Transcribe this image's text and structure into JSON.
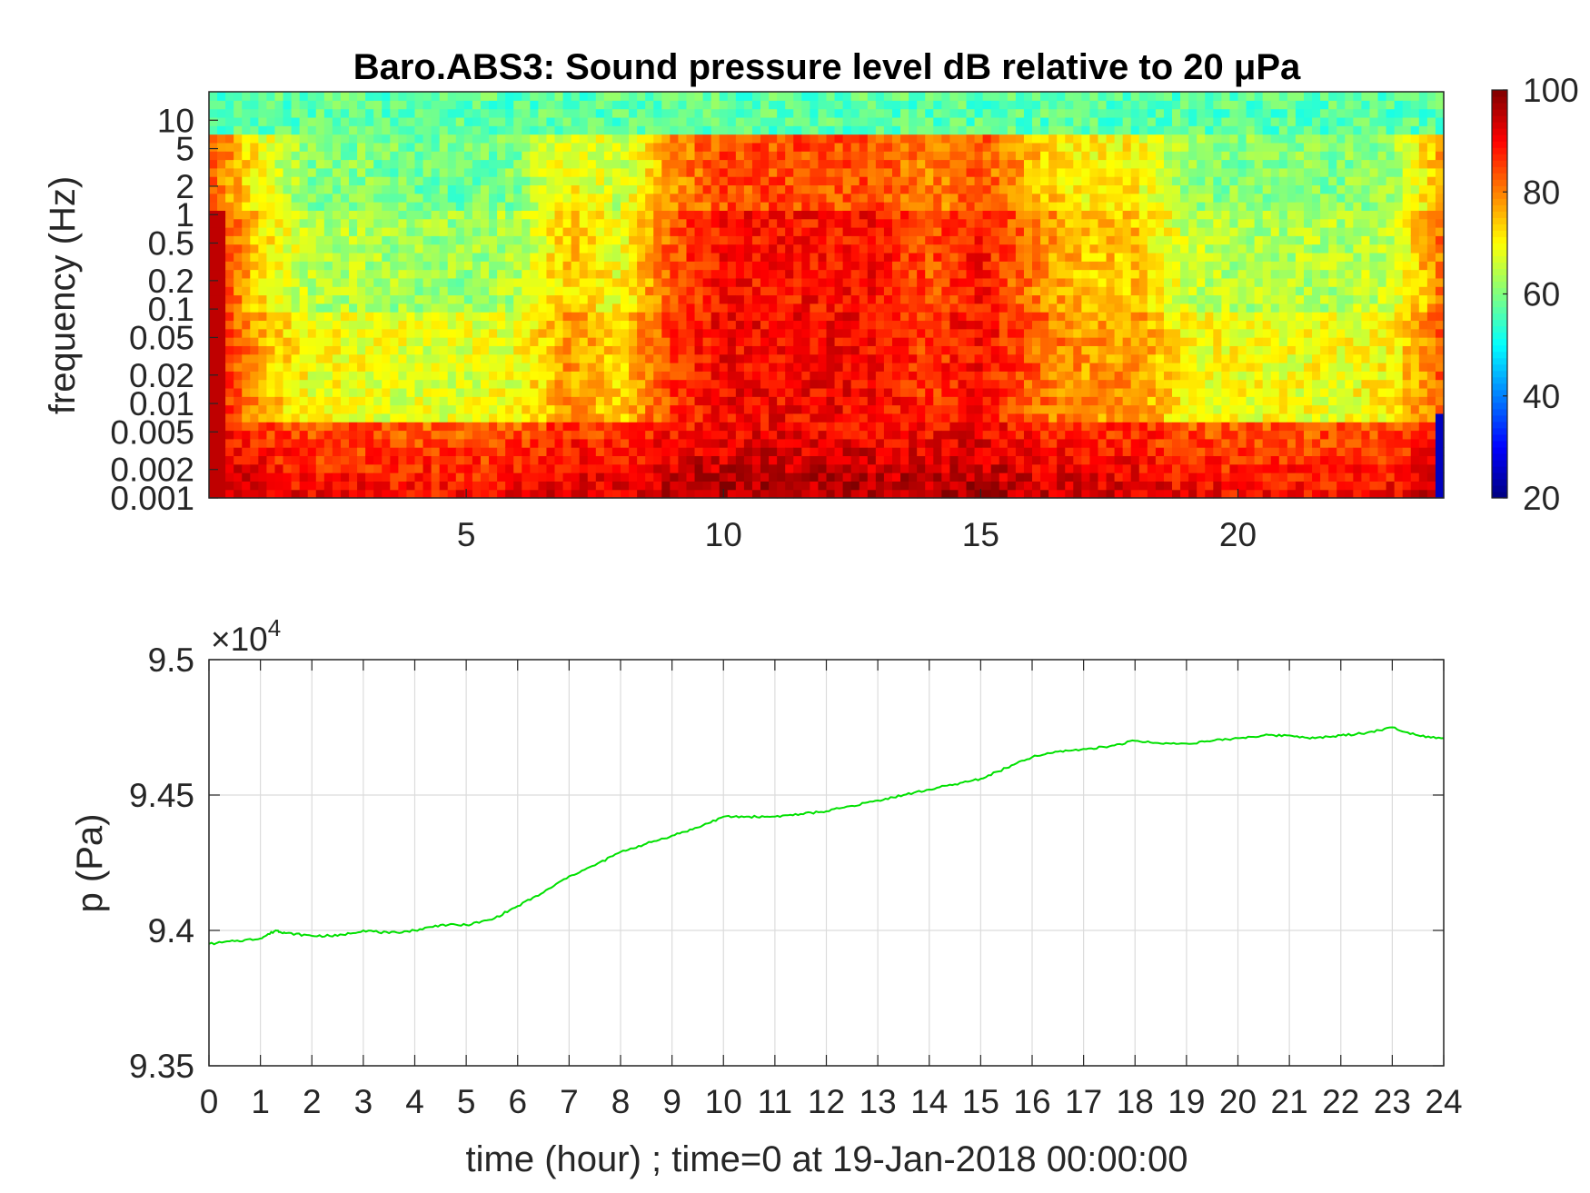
{
  "chart_data": [
    {
      "type": "heatmap",
      "title": "Baro.ABS3: Sound pressure level dB relative to 20 μPa",
      "xlabel": "",
      "ylabel": "frequency (Hz)",
      "yscale": "log",
      "xlim": [
        0,
        24
      ],
      "ylim": [
        0.001,
        20
      ],
      "x_tick_labels": [
        "5",
        "10",
        "15",
        "20"
      ],
      "x_ticks": [
        5,
        10,
        15,
        20
      ],
      "y_tick_labels": [
        "0.001",
        "0.002",
        "0.005",
        "0.01",
        "0.02",
        "0.05",
        "0.1",
        "0.2",
        "0.5",
        "1",
        "2",
        "5",
        "10"
      ],
      "y_ticks": [
        0.001,
        0.002,
        0.005,
        0.01,
        0.02,
        0.05,
        0.1,
        0.2,
        0.5,
        1,
        2,
        5,
        10
      ],
      "colormap": "jet",
      "colorbar": {
        "range": [
          20,
          100
        ],
        "tick_labels": [
          "20",
          "40",
          "60",
          "80",
          "100"
        ],
        "ticks": [
          20,
          40,
          60,
          80,
          100
        ]
      },
      "time_hours": [
        0,
        1,
        2,
        3,
        4,
        5,
        6,
        7,
        8,
        9,
        10,
        11,
        12,
        13,
        14,
        15,
        16,
        17,
        18,
        19,
        20,
        21,
        22,
        23,
        24
      ],
      "activity_level": [
        1.0,
        0.55,
        0.3,
        0.3,
        0.25,
        0.25,
        0.3,
        0.6,
        0.45,
        0.85,
        1.0,
        1.0,
        1.0,
        1.0,
        0.85,
        1.0,
        0.75,
        0.6,
        0.6,
        0.35,
        0.3,
        0.3,
        0.3,
        0.35,
        0.8
      ]
    },
    {
      "type": "line",
      "title": "",
      "xlabel": "time (hour) ; time=0 at 19-Jan-2018 00:00:00",
      "ylabel": "p (Pa)",
      "y_multiplier": "×10",
      "y_multiplier_exponent": "4",
      "xlim": [
        0,
        24
      ],
      "ylim": [
        93500,
        95000
      ],
      "x_ticks": [
        0,
        1,
        2,
        3,
        4,
        5,
        6,
        7,
        8,
        9,
        10,
        11,
        12,
        13,
        14,
        15,
        16,
        17,
        18,
        19,
        20,
        21,
        22,
        23,
        24
      ],
      "x_tick_labels": [
        "0",
        "1",
        "2",
        "3",
        "4",
        "5",
        "6",
        "7",
        "8",
        "9",
        "10",
        "11",
        "12",
        "13",
        "14",
        "15",
        "16",
        "17",
        "18",
        "19",
        "20",
        "21",
        "22",
        "23",
        "24"
      ],
      "y_ticks": [
        93500,
        94000,
        94500,
        95000
      ],
      "y_tick_labels": [
        "9.35",
        "9.4",
        "9.45",
        "9.5"
      ],
      "grid": true,
      "series": [
        {
          "color": "#00e000",
          "x": [
            0,
            0.5,
            1,
            1.3,
            1.5,
            2,
            2.5,
            3,
            3.5,
            4,
            4.5,
            5,
            5.5,
            6,
            6.5,
            7,
            7.5,
            8,
            8.5,
            9,
            9.5,
            10,
            10.5,
            11,
            11.5,
            12,
            12.5,
            13,
            13.5,
            14,
            14.5,
            15,
            15.5,
            16,
            16.5,
            17,
            17.5,
            18,
            18.5,
            19,
            19.5,
            20,
            20.5,
            21,
            21.5,
            22,
            22.5,
            23,
            23.5,
            24
          ],
          "y": [
            93950,
            93960,
            93970,
            94000,
            93990,
            93980,
            93980,
            94000,
            93990,
            94000,
            94020,
            94020,
            94040,
            94090,
            94140,
            94200,
            94240,
            94290,
            94320,
            94350,
            94380,
            94420,
            94420,
            94420,
            94430,
            94440,
            94460,
            94480,
            94500,
            94520,
            94540,
            94560,
            94600,
            94640,
            94660,
            94670,
            94680,
            94700,
            94690,
            94690,
            94700,
            94710,
            94720,
            94720,
            94710,
            94720,
            94730,
            94750,
            94720,
            94710
          ]
        }
      ]
    }
  ]
}
